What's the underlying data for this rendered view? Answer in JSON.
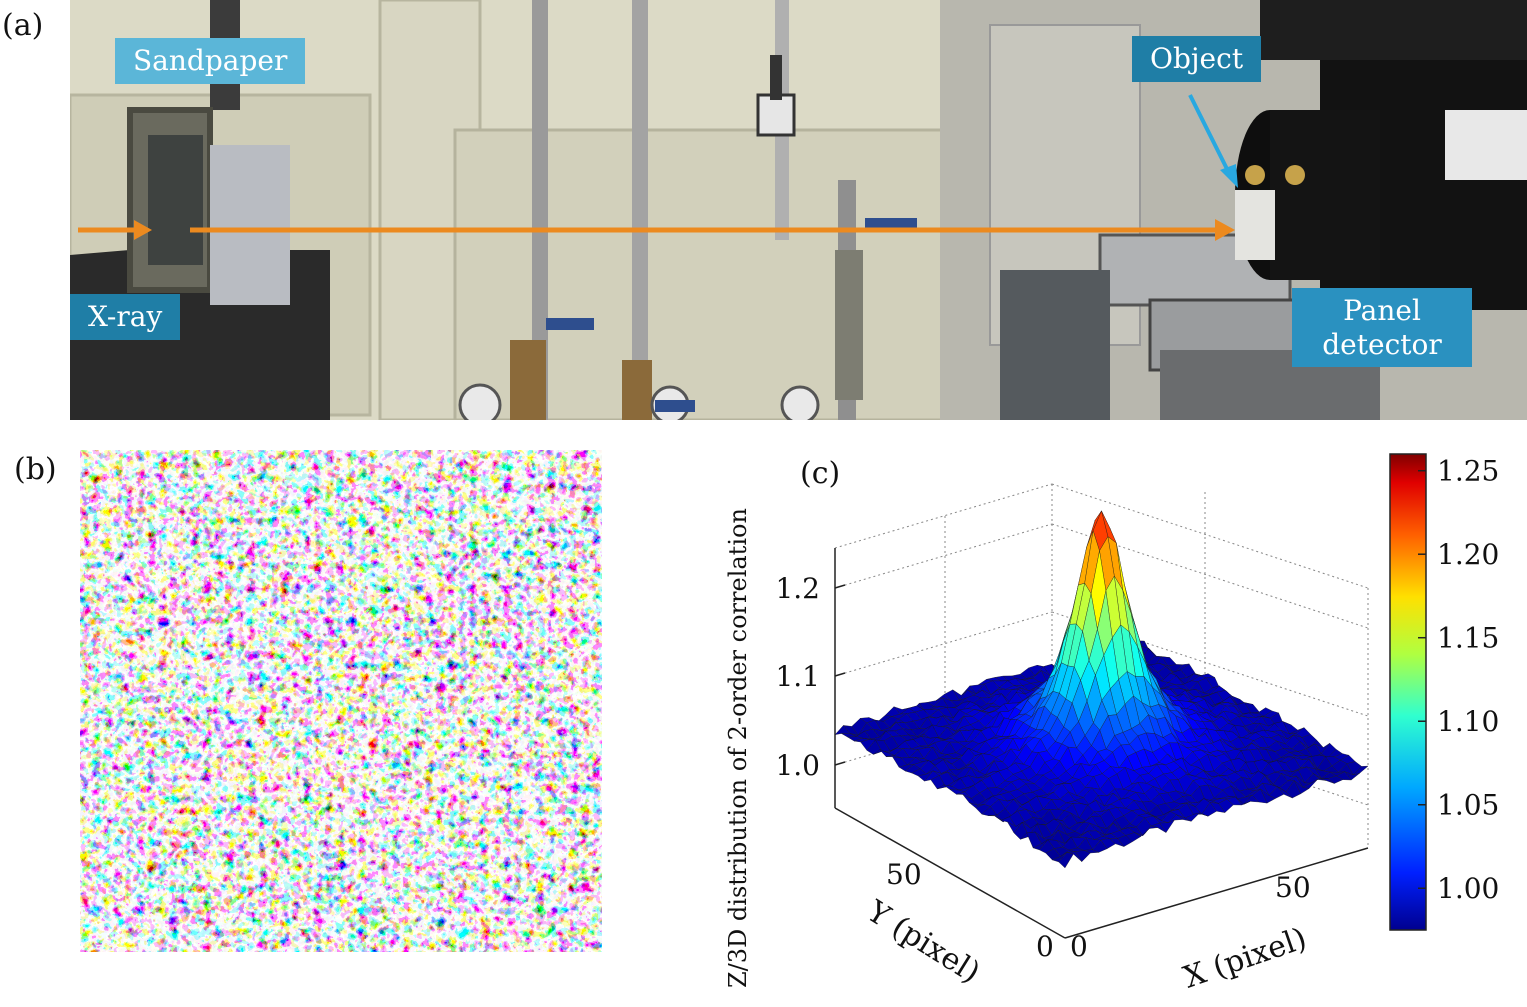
{
  "labels": {
    "a": "(a)",
    "b": "(b)",
    "c": "(c)"
  },
  "photo_tags": {
    "sandpaper": "Sandpaper",
    "object": "Object",
    "xray": "X-ray",
    "panel_detector_line1": "Panel",
    "panel_detector_line2": "detector"
  },
  "colors": {
    "tag_blue": "#1f7ea6",
    "tag_light": "#5bb6d8",
    "beam_orange": "#ec8a1f",
    "object_arrow": "#29a8e0"
  },
  "chart_data": {
    "type": "surface",
    "title": "",
    "xlabel": "X (pixel)",
    "ylabel": "Y (pixel)",
    "zlabel": "Z/3D distribution of 2-order correlation",
    "x_ticks": [
      "0",
      "50"
    ],
    "y_ticks": [
      "0",
      "50"
    ],
    "z_ticks": [
      "1.0",
      "1.1",
      "1.2"
    ],
    "zlim": [
      0.97,
      1.23
    ],
    "peak_value": 1.23,
    "baseline_value": 0.98,
    "colorbar": {
      "ticks": [
        "1.00",
        "1.05",
        "1.10",
        "1.15",
        "1.20",
        "1.25"
      ],
      "range": [
        0.975,
        1.26
      ],
      "colormap": "jet"
    }
  }
}
